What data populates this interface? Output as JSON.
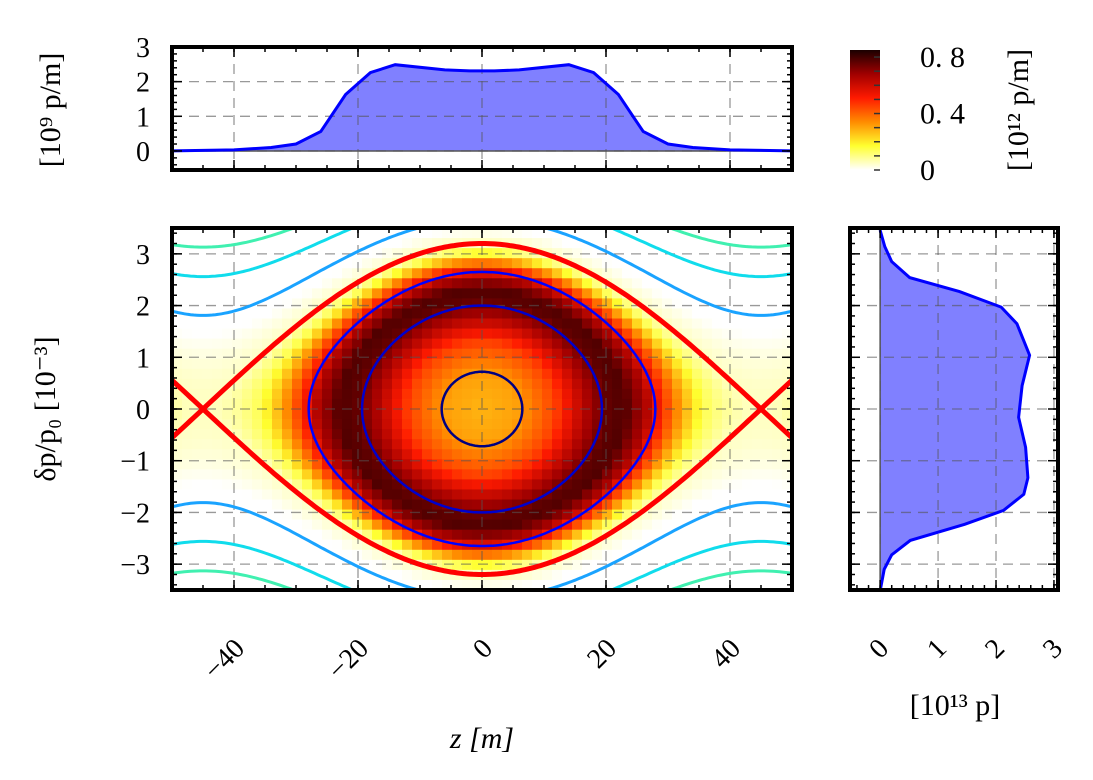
{
  "chart_data": [
    {
      "type": "heatmap",
      "panel": "phase-space",
      "xlabel": "z [m]",
      "ylabel": "δp/p₀ [10⁻³]",
      "xlim": [
        -50,
        50
      ],
      "ylim": [
        -3.5,
        3.5
      ],
      "xticks": [
        -40,
        -20,
        0,
        20,
        40
      ],
      "xtick_labels": [
        "−40",
        "−20",
        "0",
        "20",
        "40"
      ],
      "yticks": [
        -3,
        -2,
        -1,
        0,
        1,
        2,
        3
      ],
      "ytick_labels": [
        "−3",
        "−2",
        "−1",
        "0",
        "1",
        "2",
        "3"
      ],
      "grid": true,
      "colormap": [
        "#ffffff",
        "#ffff30",
        "#ff8c00",
        "#ff1a00",
        "#a00000",
        "#1a0000"
      ],
      "density_profile": {
        "normalized_amplitude": [
          0,
          0.2,
          0.4,
          0.55,
          0.65,
          0.72,
          0.8,
          0.88,
          0.95,
          1.0,
          1.1
        ],
        "density": [
          0.28,
          0.31,
          0.45,
          0.65,
          0.76,
          0.78,
          0.65,
          0.38,
          0.14,
          0.05,
          0
        ]
      },
      "separatrix": {
        "dp_max_at_z0": 3.2,
        "unstable_fixed_points_z": [
          -45,
          45
        ],
        "color": "#ff0000"
      },
      "contours_inside": [
        {
          "dp_at_z0": 0.72,
          "color": "#000080"
        },
        {
          "dp_at_z0": 2.0,
          "color": "#0000cd"
        },
        {
          "dp_at_z0": 2.65,
          "color": "#0000ff"
        }
      ],
      "contours_outside": [
        {
          "dp_at_fixed_point": 1.81,
          "color": "#1aa3ff"
        },
        {
          "dp_at_fixed_point": 2.56,
          "color": "#10dcec"
        },
        {
          "dp_at_fixed_point": 3.13,
          "color": "#40f0b0"
        }
      ]
    },
    {
      "type": "area",
      "panel": "line-density",
      "ylabel": "[10⁹ p/m]",
      "xlim": [
        -50,
        50
      ],
      "ylim": [
        -0.55,
        3
      ],
      "yticks": [
        0,
        1,
        2,
        3
      ],
      "ytick_labels": [
        "0",
        "1",
        "2",
        "3"
      ],
      "grid": true,
      "color": "#0000ff",
      "fill": "#8080ff",
      "x": [
        -50,
        -40,
        -34,
        -30,
        -26,
        -22,
        -18,
        -14,
        -6,
        -2,
        2,
        6,
        14,
        18,
        22,
        26,
        30,
        34,
        40,
        50
      ],
      "y": [
        0,
        0.03,
        0.1,
        0.2,
        0.56,
        1.63,
        2.26,
        2.49,
        2.34,
        2.31,
        2.31,
        2.34,
        2.49,
        2.26,
        1.63,
        0.56,
        0.2,
        0.1,
        0.03,
        0
      ]
    },
    {
      "type": "area",
      "panel": "momentum-profile",
      "xlabel": "[10¹³ p]",
      "xlim": [
        -0.52,
        3.07
      ],
      "ylim": [
        -3.5,
        3.5
      ],
      "xticks": [
        0,
        1,
        2,
        3
      ],
      "xtick_labels": [
        "0",
        "1",
        "2",
        "3"
      ],
      "grid": true,
      "color": "#0000ff",
      "fill": "#8080ff",
      "dp": [
        3.46,
        3.14,
        2.85,
        2.54,
        2.27,
        1.97,
        1.65,
        1.04,
        0.45,
        -0.16,
        -0.74,
        -1.33,
        -1.65,
        -1.96,
        -2.23,
        -2.54,
        -2.82,
        -3.1,
        -3.46
      ],
      "value": [
        0,
        0.08,
        0.2,
        0.51,
        1.37,
        2.09,
        2.36,
        2.58,
        2.45,
        2.39,
        2.51,
        2.55,
        2.48,
        2.13,
        1.46,
        0.52,
        0.2,
        0.07,
        0.01
      ]
    },
    {
      "type": "colorbar",
      "label": "[10¹² p/m]",
      "clim": [
        0,
        0.85
      ],
      "ticks": [
        0,
        0.4,
        0.8
      ],
      "tick_labels": [
        "0",
        "0. 4",
        "0. 8"
      ]
    }
  ]
}
